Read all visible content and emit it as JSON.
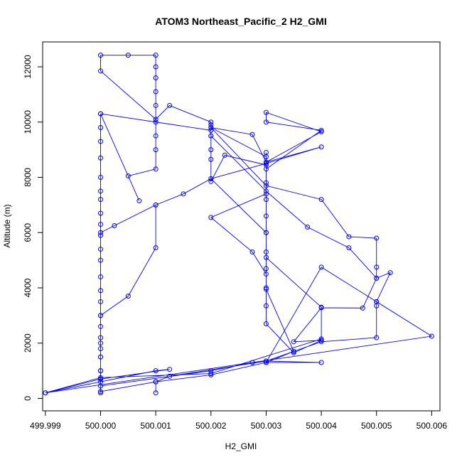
{
  "chart_data": {
    "type": "line",
    "title": "ATOM3 Northeast_Pacific_2 H2_GMI",
    "xlabel": "H2_GMI",
    "ylabel": "Altitude (m)",
    "xlim": [
      499.99895,
      500.00615
    ],
    "ylim": [
      -450,
      12900
    ],
    "x_ticks": [
      499.999,
      500.0,
      500.001,
      500.002,
      500.003,
      500.004,
      500.005,
      500.006
    ],
    "x_tick_labels": [
      "499.999",
      "500.000",
      "500.001",
      "500.002",
      "500.003",
      "500.004",
      "500.005",
      "500.006"
    ],
    "y_ticks": [
      0,
      2000,
      4000,
      6000,
      8000,
      10000,
      12000
    ],
    "y_tick_labels": [
      "0",
      "2000",
      "4000",
      "6000",
      "8000",
      "10000",
      "12000"
    ],
    "grid": false,
    "markers": "open-circle",
    "color": "#0000ff",
    "series": [
      {
        "points": [
          [
            500.0,
            200
          ],
          [
            500.0,
            600
          ],
          [
            500.0,
            1000
          ],
          [
            500.0,
            1500
          ],
          [
            500.0,
            1800
          ],
          [
            500.0,
            2200
          ],
          [
            500.0,
            2600
          ],
          [
            500.0,
            3000
          ],
          [
            500.0,
            3500
          ],
          [
            500.0,
            3900
          ],
          [
            500.0,
            4400
          ],
          [
            500.0,
            5000
          ],
          [
            500.0,
            5400
          ],
          [
            500.0,
            5900
          ],
          [
            500.0,
            6300
          ],
          [
            500.0,
            6700
          ],
          [
            500.0,
            7200
          ],
          [
            500.0,
            7500
          ],
          [
            500.0,
            8000
          ],
          [
            500.0,
            8700
          ],
          [
            500.0,
            9300
          ],
          [
            500.0,
            9800
          ],
          [
            500.0,
            10300
          ],
          [
            500.0007,
            7150
          ],
          [
            500.0005,
            8050
          ],
          [
            500.001,
            8300
          ],
          [
            500.001,
            9000
          ],
          [
            500.001,
            9500
          ],
          [
            500.001,
            10000
          ],
          [
            500.001,
            10600
          ],
          [
            500.001,
            11100
          ],
          [
            500.001,
            11600
          ],
          [
            500.001,
            12000
          ],
          [
            500.001,
            12420
          ],
          [
            500.0005,
            12420
          ],
          [
            500.0,
            12420
          ],
          [
            500.0,
            11850
          ],
          [
            500.001,
            10100
          ],
          [
            500.00125,
            10600
          ],
          [
            500.002,
            10000
          ],
          [
            500.002,
            9500
          ],
          [
            500.002,
            9000
          ],
          [
            500.002,
            8650
          ],
          [
            500.002,
            7850
          ],
          [
            500.00225,
            8800
          ],
          [
            500.003,
            8450
          ],
          [
            500.003,
            8900
          ],
          [
            500.003,
            8550
          ],
          [
            500.004,
            9650
          ],
          [
            500.003,
            10350
          ],
          [
            500.003,
            10000
          ],
          [
            500.004,
            9700
          ],
          [
            500.003,
            8300
          ],
          [
            500.003,
            7800
          ],
          [
            500.003,
            7200
          ],
          [
            500.003,
            6600
          ],
          [
            500.003,
            6000
          ],
          [
            500.003,
            5300
          ],
          [
            500.003,
            4700
          ],
          [
            500.003,
            4000
          ],
          [
            500.003,
            3350
          ],
          [
            500.003,
            2700
          ],
          [
            500.0035,
            1650
          ],
          [
            500.004,
            2100
          ],
          [
            500.0035,
            2050
          ],
          [
            500.004,
            3280
          ],
          [
            500.00475,
            3270
          ],
          [
            500.005,
            4350
          ],
          [
            500.005,
            4750
          ],
          [
            500.005,
            5800
          ],
          [
            500.0045,
            5850
          ],
          [
            500.004,
            7200
          ],
          [
            500.003,
            7700
          ],
          [
            500.002,
            9800
          ],
          [
            500.00275,
            9550
          ],
          [
            500.003,
            8550
          ],
          [
            500.004,
            9100
          ],
          [
            500.003,
            8500
          ],
          [
            500.002,
            7950
          ],
          [
            500.0015,
            7400
          ],
          [
            500.001,
            7000
          ],
          [
            500.0,
            6000
          ],
          [
            500.00025,
            6250
          ],
          [
            500.001,
            7000
          ],
          [
            500.001,
            5450
          ],
          [
            500.0005,
            3700
          ],
          [
            500.0,
            3000
          ],
          [
            500.0,
            2000
          ],
          [
            500.0,
            1500
          ],
          [
            500.0,
            1000
          ],
          [
            500.0,
            700
          ],
          [
            499.999,
            200
          ],
          [
            500.001,
            1000
          ],
          [
            500.00125,
            1050
          ],
          [
            500.0,
            700
          ],
          [
            500.0,
            450
          ],
          [
            500.002,
            1000
          ],
          [
            500.00275,
            1300
          ],
          [
            500.003,
            1350
          ],
          [
            500.004,
            1300
          ],
          [
            500.003,
            1300
          ],
          [
            500.002,
            850
          ],
          [
            500.001,
            600
          ],
          [
            500.0,
            250
          ],
          [
            500.001,
            600
          ],
          [
            500.001,
            200
          ],
          [
            500.001,
            600
          ],
          [
            500.00125,
            800
          ],
          [
            500.003,
            1350
          ],
          [
            500.0035,
            1700
          ],
          [
            500.004,
            2050
          ],
          [
            500.005,
            2200
          ],
          [
            500.005,
            3350
          ],
          [
            500.005,
            3500
          ],
          [
            500.00525,
            4550
          ],
          [
            500.005,
            4350
          ],
          [
            500.0045,
            5450
          ],
          [
            500.00375,
            6200
          ],
          [
            500.003,
            7500
          ],
          [
            500.002,
            9500
          ],
          [
            500.002,
            9900
          ],
          [
            500.002,
            9800
          ],
          [
            500.003,
            8750
          ],
          [
            500.003,
            7400
          ],
          [
            500.002,
            6550
          ],
          [
            500.00275,
            5300
          ],
          [
            500.003,
            4500
          ],
          [
            500.003,
            3950
          ],
          [
            500.0035,
            1700
          ],
          [
            500.003,
            1300
          ],
          [
            500.004,
            4750
          ],
          [
            500.005,
            3500
          ],
          [
            500.006,
            2250
          ],
          [
            499.999,
            200
          ],
          [
            500.0,
            750
          ],
          [
            500.002,
            900
          ],
          [
            500.004,
            2150
          ],
          [
            500.004,
            3300
          ],
          [
            500.003,
            5100
          ],
          [
            500.003,
            6000
          ],
          [
            500.002,
            7950
          ],
          [
            500.002,
            9700
          ],
          [
            500.0,
            10300
          ]
        ]
      }
    ]
  }
}
